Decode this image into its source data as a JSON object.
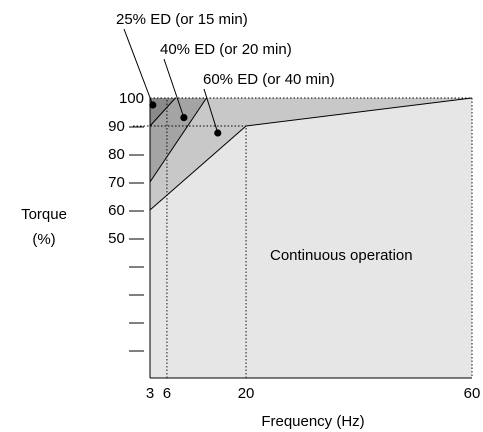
{
  "chart_data": {
    "type": "area",
    "xlabel": "Frequency (Hz)",
    "ylabel_line1": "Torque",
    "ylabel_line2": "(%)",
    "xlim": [
      3,
      60
    ],
    "ylim": [
      0,
      100
    ],
    "x_ticks": [
      3,
      6,
      20,
      60
    ],
    "y_tick_labels": [
      {
        "value": 100,
        "label": "100"
      },
      {
        "value": 90,
        "label": "90 —"
      },
      {
        "value": 80,
        "label": "80 —"
      },
      {
        "value": 70,
        "label": "70 —"
      },
      {
        "value": 60,
        "label": "60 —"
      },
      {
        "value": 50,
        "label": "50 —"
      },
      {
        "value": 40,
        "label": "—"
      },
      {
        "value": 30,
        "label": "—"
      },
      {
        "value": 20,
        "label": "—"
      },
      {
        "value": 10,
        "label": "—"
      }
    ],
    "regions": [
      {
        "name": "Continuous operation",
        "color": "#e6e6e6",
        "points": [
          [
            3,
            0
          ],
          [
            3,
            60
          ],
          [
            20,
            90
          ],
          [
            60,
            100
          ],
          [
            60,
            0
          ]
        ]
      },
      {
        "name": "60% ED (or 40 min)",
        "color": "#c8c8c8",
        "points": [
          [
            3,
            60
          ],
          [
            3,
            70
          ],
          [
            13,
            100
          ],
          [
            60,
            100
          ],
          [
            20,
            90
          ]
        ]
      },
      {
        "name": "40% ED (or 20 min)",
        "color": "#a4a4a4",
        "points": [
          [
            3,
            70
          ],
          [
            3,
            90
          ],
          [
            7.5,
            100
          ],
          [
            13,
            100
          ]
        ]
      },
      {
        "name": "25% ED (or 15 min)",
        "color": "#8a8a8a",
        "points": [
          [
            3,
            90
          ],
          [
            3,
            100
          ],
          [
            7.5,
            100
          ]
        ]
      }
    ],
    "boundary_lines": [
      {
        "points": [
          [
            3,
            60
          ],
          [
            20,
            90
          ],
          [
            60,
            100
          ]
        ]
      },
      {
        "points": [
          [
            3,
            70
          ],
          [
            13,
            100
          ]
        ]
      },
      {
        "points": [
          [
            3,
            90
          ],
          [
            7.5,
            100
          ]
        ]
      }
    ],
    "reference_lines": [
      {
        "orientation": "vertical",
        "value": 6,
        "from": 0,
        "to": 100
      },
      {
        "orientation": "vertical",
        "value": 20,
        "from": 0,
        "to": 90
      },
      {
        "orientation": "horizontal",
        "value": 90,
        "from": 0,
        "to": 20
      }
    ],
    "annotations": [
      {
        "text": "25% ED (or 15 min)",
        "dot": [
          3.5,
          97.5
        ]
      },
      {
        "text": "40% ED (or 20 min)",
        "dot": [
          9,
          93
        ]
      },
      {
        "text": "60% ED (or 40 min)",
        "dot": [
          15,
          87.5
        ]
      }
    ],
    "region_label": "Continuous operation"
  }
}
